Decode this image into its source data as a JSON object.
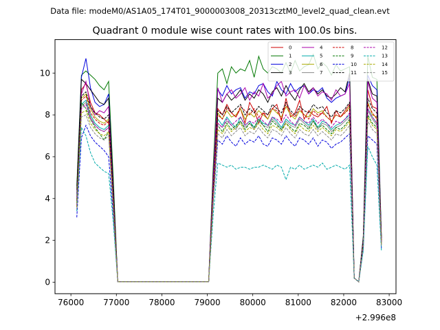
{
  "chart_data": {
    "type": "line",
    "suptitle": "Data file: modeM0/AS1A05_174T01_9000003008_20313cztM0_level2_quad_clean.evt",
    "title": "Quadrant 0 module wise count rates with 100.0s bins.",
    "xlabel": "",
    "ylabel": "",
    "x_offset_label": "+2.996e8",
    "xlim": [
      75650,
      83150
    ],
    "ylim": [
      -0.55,
      11.6
    ],
    "xticks": [
      76000,
      77000,
      78000,
      79000,
      80000,
      81000,
      82000,
      83000
    ],
    "xtick_labels": [
      "76000",
      "77000",
      "78000",
      "79000",
      "80000",
      "81000",
      "82000",
      "83000"
    ],
    "yticks": [
      0,
      2,
      4,
      6,
      8,
      10
    ],
    "ytick_labels": [
      "0",
      "2",
      "4",
      "6",
      "8",
      "10"
    ],
    "grid": false,
    "legend_position": "top-right",
    "x": [
      76130,
      76230,
      76330,
      76430,
      76530,
      76630,
      76730,
      76830,
      76930,
      77030,
      79030,
      79130,
      79230,
      79330,
      79430,
      79530,
      79630,
      79730,
      79830,
      79930,
      80030,
      80130,
      80230,
      80330,
      80430,
      80530,
      80630,
      80730,
      80830,
      80930,
      81030,
      81130,
      81230,
      81330,
      81430,
      81530,
      81630,
      81730,
      81830,
      81930,
      82030,
      82130,
      82230,
      82330,
      82430,
      82530,
      82630,
      82730,
      82830
    ],
    "series": [
      {
        "name": "0",
        "color": "#cc0000",
        "dash": "solid",
        "values": [
          3.6,
          9.2,
          9.5,
          8.6,
          8.1,
          8.0,
          7.8,
          7.6,
          4.0,
          0.02,
          0.02,
          4.5,
          8.3,
          8.0,
          8.5,
          8.1,
          7.9,
          8.3,
          7.6,
          8.6,
          8.2,
          7.6,
          8.1,
          7.8,
          8.3,
          8.5,
          7.7,
          8.8,
          7.9,
          8.1,
          8.7,
          7.8,
          8.2,
          8.0,
          7.9,
          8.1,
          8.4,
          7.6,
          8.2,
          7.9,
          8.2,
          8.5,
          0.2,
          0.02,
          2.0,
          9.2,
          8.4,
          8.3,
          2.0
        ]
      },
      {
        "name": "1",
        "color": "#007700",
        "dash": "solid",
        "values": [
          4.6,
          9.9,
          10.1,
          9.9,
          9.7,
          9.4,
          9.2,
          9.6,
          5.0,
          0.02,
          0.02,
          5.5,
          10.0,
          10.2,
          9.5,
          10.3,
          10.0,
          10.2,
          10.1,
          10.6,
          9.8,
          10.8,
          10.2,
          10.0,
          10.3,
          10.2,
          10.0,
          10.5,
          10.0,
          10.6,
          10.1,
          10.3,
          10.4,
          10.9,
          10.2,
          10.5,
          10.3,
          9.9,
          10.4,
          10.1,
          10.2,
          10.3,
          0.2,
          0.02,
          2.2,
          10.8,
          9.8,
          9.7,
          2.2
        ]
      },
      {
        "name": "2",
        "color": "#0000dd",
        "dash": "solid",
        "values": [
          4.2,
          9.8,
          10.7,
          9.3,
          8.6,
          8.4,
          8.5,
          9.0,
          4.5,
          0.02,
          0.02,
          5.0,
          9.2,
          8.9,
          9.4,
          9.0,
          9.2,
          9.3,
          8.8,
          9.1,
          9.0,
          9.4,
          9.5,
          9.1,
          8.9,
          9.6,
          9.2,
          9.0,
          9.5,
          9.1,
          9.3,
          9.4,
          9.0,
          9.2,
          9.1,
          9.3,
          8.8,
          8.6,
          8.8,
          8.9,
          9.0,
          9.8,
          0.2,
          0.02,
          2.1,
          9.9,
          9.4,
          9.2,
          2.1
        ]
      },
      {
        "name": "3",
        "color": "#000000",
        "dash": "solid",
        "values": [
          4.4,
          9.7,
          9.5,
          9.2,
          8.9,
          8.6,
          8.5,
          8.8,
          4.6,
          0.02,
          0.02,
          5.1,
          8.8,
          8.6,
          9.0,
          8.7,
          8.9,
          9.2,
          8.7,
          9.0,
          8.8,
          9.2,
          9.0,
          8.6,
          9.1,
          9.3,
          8.9,
          9.4,
          9.0,
          8.7,
          9.2,
          9.5,
          9.1,
          9.3,
          9.0,
          9.2,
          8.9,
          8.8,
          9.0,
          9.3,
          9.1,
          10.0,
          0.2,
          0.02,
          2.1,
          9.7,
          9.0,
          8.9,
          2.1
        ]
      },
      {
        "name": "4",
        "color": "#aa00aa",
        "dash": "solid",
        "values": [
          4.0,
          9.0,
          9.6,
          8.4,
          8.0,
          8.2,
          8.1,
          8.4,
          4.2,
          0.02,
          0.02,
          4.9,
          9.3,
          8.6,
          9.0,
          9.2,
          8.8,
          9.0,
          9.3,
          8.7,
          9.1,
          8.9,
          9.5,
          8.8,
          9.0,
          9.4,
          9.6,
          8.9,
          9.1,
          9.2,
          8.8,
          9.4,
          9.0,
          9.3,
          8.9,
          9.1,
          9.0,
          8.7,
          9.2,
          8.9,
          9.0,
          9.5,
          0.2,
          0.02,
          2.0,
          9.6,
          8.8,
          8.6,
          2.0
        ]
      },
      {
        "name": "5",
        "color": "#00aaaa",
        "dash": "solid",
        "values": [
          3.8,
          8.5,
          8.7,
          8.0,
          7.6,
          7.4,
          7.3,
          7.5,
          3.8,
          0.02,
          0.02,
          4.2,
          7.8,
          7.5,
          7.9,
          7.6,
          7.4,
          7.9,
          7.5,
          7.7,
          7.4,
          7.8,
          7.6,
          7.5,
          7.9,
          7.7,
          7.4,
          7.8,
          7.6,
          7.5,
          7.9,
          7.7,
          7.5,
          7.8,
          7.4,
          7.7,
          7.6,
          7.3,
          7.5,
          7.6,
          7.8,
          8.0,
          0.2,
          0.02,
          1.9,
          8.3,
          7.9,
          7.6,
          1.9
        ]
      },
      {
        "name": "6",
        "color": "#aaaa00",
        "dash": "solid",
        "values": [
          3.9,
          8.8,
          9.0,
          8.3,
          7.9,
          7.7,
          7.6,
          7.8,
          3.9,
          0.02,
          0.02,
          4.4,
          8.1,
          7.8,
          8.2,
          7.9,
          8.0,
          8.3,
          7.8,
          8.1,
          7.9,
          8.2,
          8.0,
          7.8,
          8.3,
          8.1,
          7.9,
          8.4,
          8.0,
          7.8,
          8.2,
          8.0,
          7.9,
          8.3,
          8.1,
          8.2,
          7.9,
          7.7,
          8.0,
          7.9,
          8.1,
          8.4,
          0.2,
          0.02,
          1.9,
          8.6,
          8.0,
          7.9,
          1.9
        ]
      },
      {
        "name": "7",
        "color": "#888888",
        "dash": "solid",
        "values": [
          3.7,
          8.4,
          8.6,
          7.9,
          7.5,
          7.3,
          7.2,
          7.4,
          3.7,
          0.02,
          0.02,
          4.1,
          7.6,
          7.4,
          7.7,
          7.5,
          7.3,
          7.7,
          7.4,
          7.6,
          7.3,
          7.7,
          7.5,
          7.4,
          7.8,
          7.6,
          7.3,
          7.7,
          7.5,
          7.4,
          7.8,
          7.6,
          7.4,
          7.7,
          7.3,
          7.6,
          7.5,
          7.2,
          7.4,
          7.5,
          7.7,
          7.9,
          0.2,
          0.02,
          1.8,
          8.2,
          7.8,
          7.5,
          1.8
        ]
      },
      {
        "name": "8",
        "color": "#cc0000",
        "dash": "dashed",
        "values": [
          3.6,
          8.7,
          8.9,
          8.1,
          7.8,
          7.6,
          7.5,
          7.7,
          3.9,
          0.02,
          0.02,
          4.3,
          8.0,
          7.8,
          8.3,
          8.1,
          7.9,
          8.4,
          8.2,
          8.0,
          8.3,
          7.9,
          8.1,
          8.0,
          8.3,
          8.2,
          7.8,
          8.5,
          8.1,
          7.9,
          8.3,
          8.0,
          7.8,
          8.2,
          8.0,
          8.1,
          7.9,
          7.7,
          8.0,
          7.9,
          8.1,
          8.3,
          0.2,
          0.02,
          1.9,
          8.5,
          8.1,
          7.8,
          1.9
        ]
      },
      {
        "name": "9",
        "color": "#007700",
        "dash": "dashed",
        "values": [
          3.8,
          8.6,
          8.3,
          7.8,
          7.4,
          7.1,
          6.8,
          7.2,
          3.6,
          0.02,
          0.02,
          4.0,
          7.5,
          7.2,
          7.6,
          7.3,
          7.5,
          7.7,
          7.3,
          7.6,
          7.4,
          7.8,
          7.5,
          7.2,
          7.7,
          7.5,
          7.3,
          7.6,
          7.4,
          7.2,
          7.6,
          7.5,
          7.3,
          7.7,
          7.4,
          7.5,
          7.3,
          7.1,
          7.4,
          7.3,
          7.5,
          7.8,
          0.2,
          0.02,
          1.8,
          8.0,
          7.6,
          7.4,
          1.8
        ]
      },
      {
        "name": "10",
        "color": "#0000dd",
        "dash": "dashed",
        "values": [
          3.1,
          6.9,
          7.5,
          7.0,
          6.7,
          6.5,
          6.3,
          6.0,
          3.2,
          0.02,
          0.02,
          3.8,
          6.8,
          6.6,
          7.0,
          6.7,
          6.5,
          6.9,
          6.6,
          6.8,
          6.7,
          7.0,
          6.6,
          6.5,
          6.9,
          6.8,
          6.6,
          7.0,
          6.7,
          6.5,
          6.9,
          6.8,
          6.6,
          6.9,
          6.5,
          6.8,
          6.7,
          6.4,
          6.6,
          6.7,
          6.9,
          7.1,
          0.2,
          0.02,
          1.6,
          7.0,
          6.8,
          6.6,
          1.6
        ]
      },
      {
        "name": "11",
        "color": "#000000",
        "dash": "dashed",
        "values": [
          3.9,
          8.9,
          9.1,
          8.4,
          8.1,
          7.9,
          7.8,
          8.0,
          4.0,
          0.02,
          0.02,
          4.4,
          8.2,
          8.0,
          8.4,
          8.1,
          8.3,
          8.5,
          8.0,
          8.3,
          8.1,
          8.4,
          8.2,
          8.0,
          8.5,
          8.3,
          8.1,
          8.6,
          8.2,
          8.0,
          8.4,
          8.2,
          8.1,
          8.5,
          8.3,
          8.4,
          8.1,
          7.9,
          8.2,
          8.1,
          8.3,
          8.6,
          0.2,
          0.02,
          2.0,
          8.8,
          8.3,
          8.1,
          2.0
        ]
      },
      {
        "name": "12",
        "color": "#aa00aa",
        "dash": "dashed",
        "values": [
          3.7,
          8.3,
          8.5,
          7.8,
          7.5,
          7.3,
          7.2,
          7.4,
          3.7,
          0.02,
          0.02,
          4.1,
          7.6,
          7.4,
          7.8,
          7.5,
          7.7,
          7.9,
          7.5,
          7.7,
          7.6,
          7.9,
          7.7,
          7.5,
          7.9,
          7.8,
          7.6,
          8.0,
          7.7,
          7.5,
          7.9,
          7.7,
          7.6,
          7.9,
          7.6,
          7.8,
          7.6,
          7.4,
          7.7,
          7.6,
          7.8,
          8.1,
          0.2,
          0.02,
          1.9,
          8.3,
          7.9,
          7.6,
          1.9
        ]
      },
      {
        "name": "13",
        "color": "#00aaaa",
        "dash": "dashed",
        "values": [
          3.4,
          7.4,
          7.0,
          6.2,
          5.7,
          5.5,
          5.3,
          5.2,
          2.9,
          0.02,
          0.02,
          3.2,
          5.7,
          5.6,
          5.5,
          5.6,
          5.4,
          5.5,
          5.5,
          5.4,
          5.5,
          5.5,
          5.6,
          5.5,
          5.4,
          5.6,
          5.5,
          4.9,
          5.5,
          5.4,
          5.6,
          5.4,
          5.5,
          5.6,
          5.5,
          5.7,
          5.4,
          5.5,
          5.6,
          5.5,
          5.4,
          5.6,
          0.2,
          0.02,
          1.5,
          6.5,
          6.0,
          5.6,
          1.5
        ]
      },
      {
        "name": "14",
        "color": "#aaaa00",
        "dash": "dashed",
        "values": [
          3.6,
          8.1,
          8.2,
          7.6,
          7.3,
          7.1,
          7.0,
          7.2,
          3.6,
          0.02,
          0.02,
          3.9,
          7.3,
          7.1,
          7.5,
          7.2,
          7.4,
          7.6,
          7.2,
          7.4,
          7.3,
          7.6,
          7.3,
          7.1,
          7.5,
          7.4,
          7.2,
          7.6,
          7.3,
          7.1,
          7.5,
          7.3,
          7.2,
          7.5,
          7.2,
          7.4,
          7.2,
          7.0,
          7.3,
          7.2,
          7.4,
          7.7,
          0.2,
          0.02,
          1.8,
          7.9,
          7.5,
          7.3,
          1.8
        ]
      },
      {
        "name": "15",
        "color": "#888888",
        "dash": "dashed",
        "values": [
          3.5,
          7.9,
          8.0,
          7.4,
          7.1,
          6.9,
          6.8,
          7.0,
          3.5,
          0.02,
          0.02,
          3.8,
          7.1,
          6.9,
          7.3,
          7.0,
          7.2,
          7.4,
          7.0,
          7.2,
          7.1,
          7.4,
          7.1,
          6.9,
          7.3,
          7.2,
          7.0,
          7.4,
          7.1,
          6.9,
          7.3,
          7.1,
          7.0,
          7.3,
          7.0,
          7.2,
          7.0,
          6.8,
          7.1,
          7.0,
          7.2,
          7.5,
          0.2,
          0.02,
          1.7,
          7.7,
          7.3,
          7.1,
          1.7
        ]
      }
    ]
  }
}
